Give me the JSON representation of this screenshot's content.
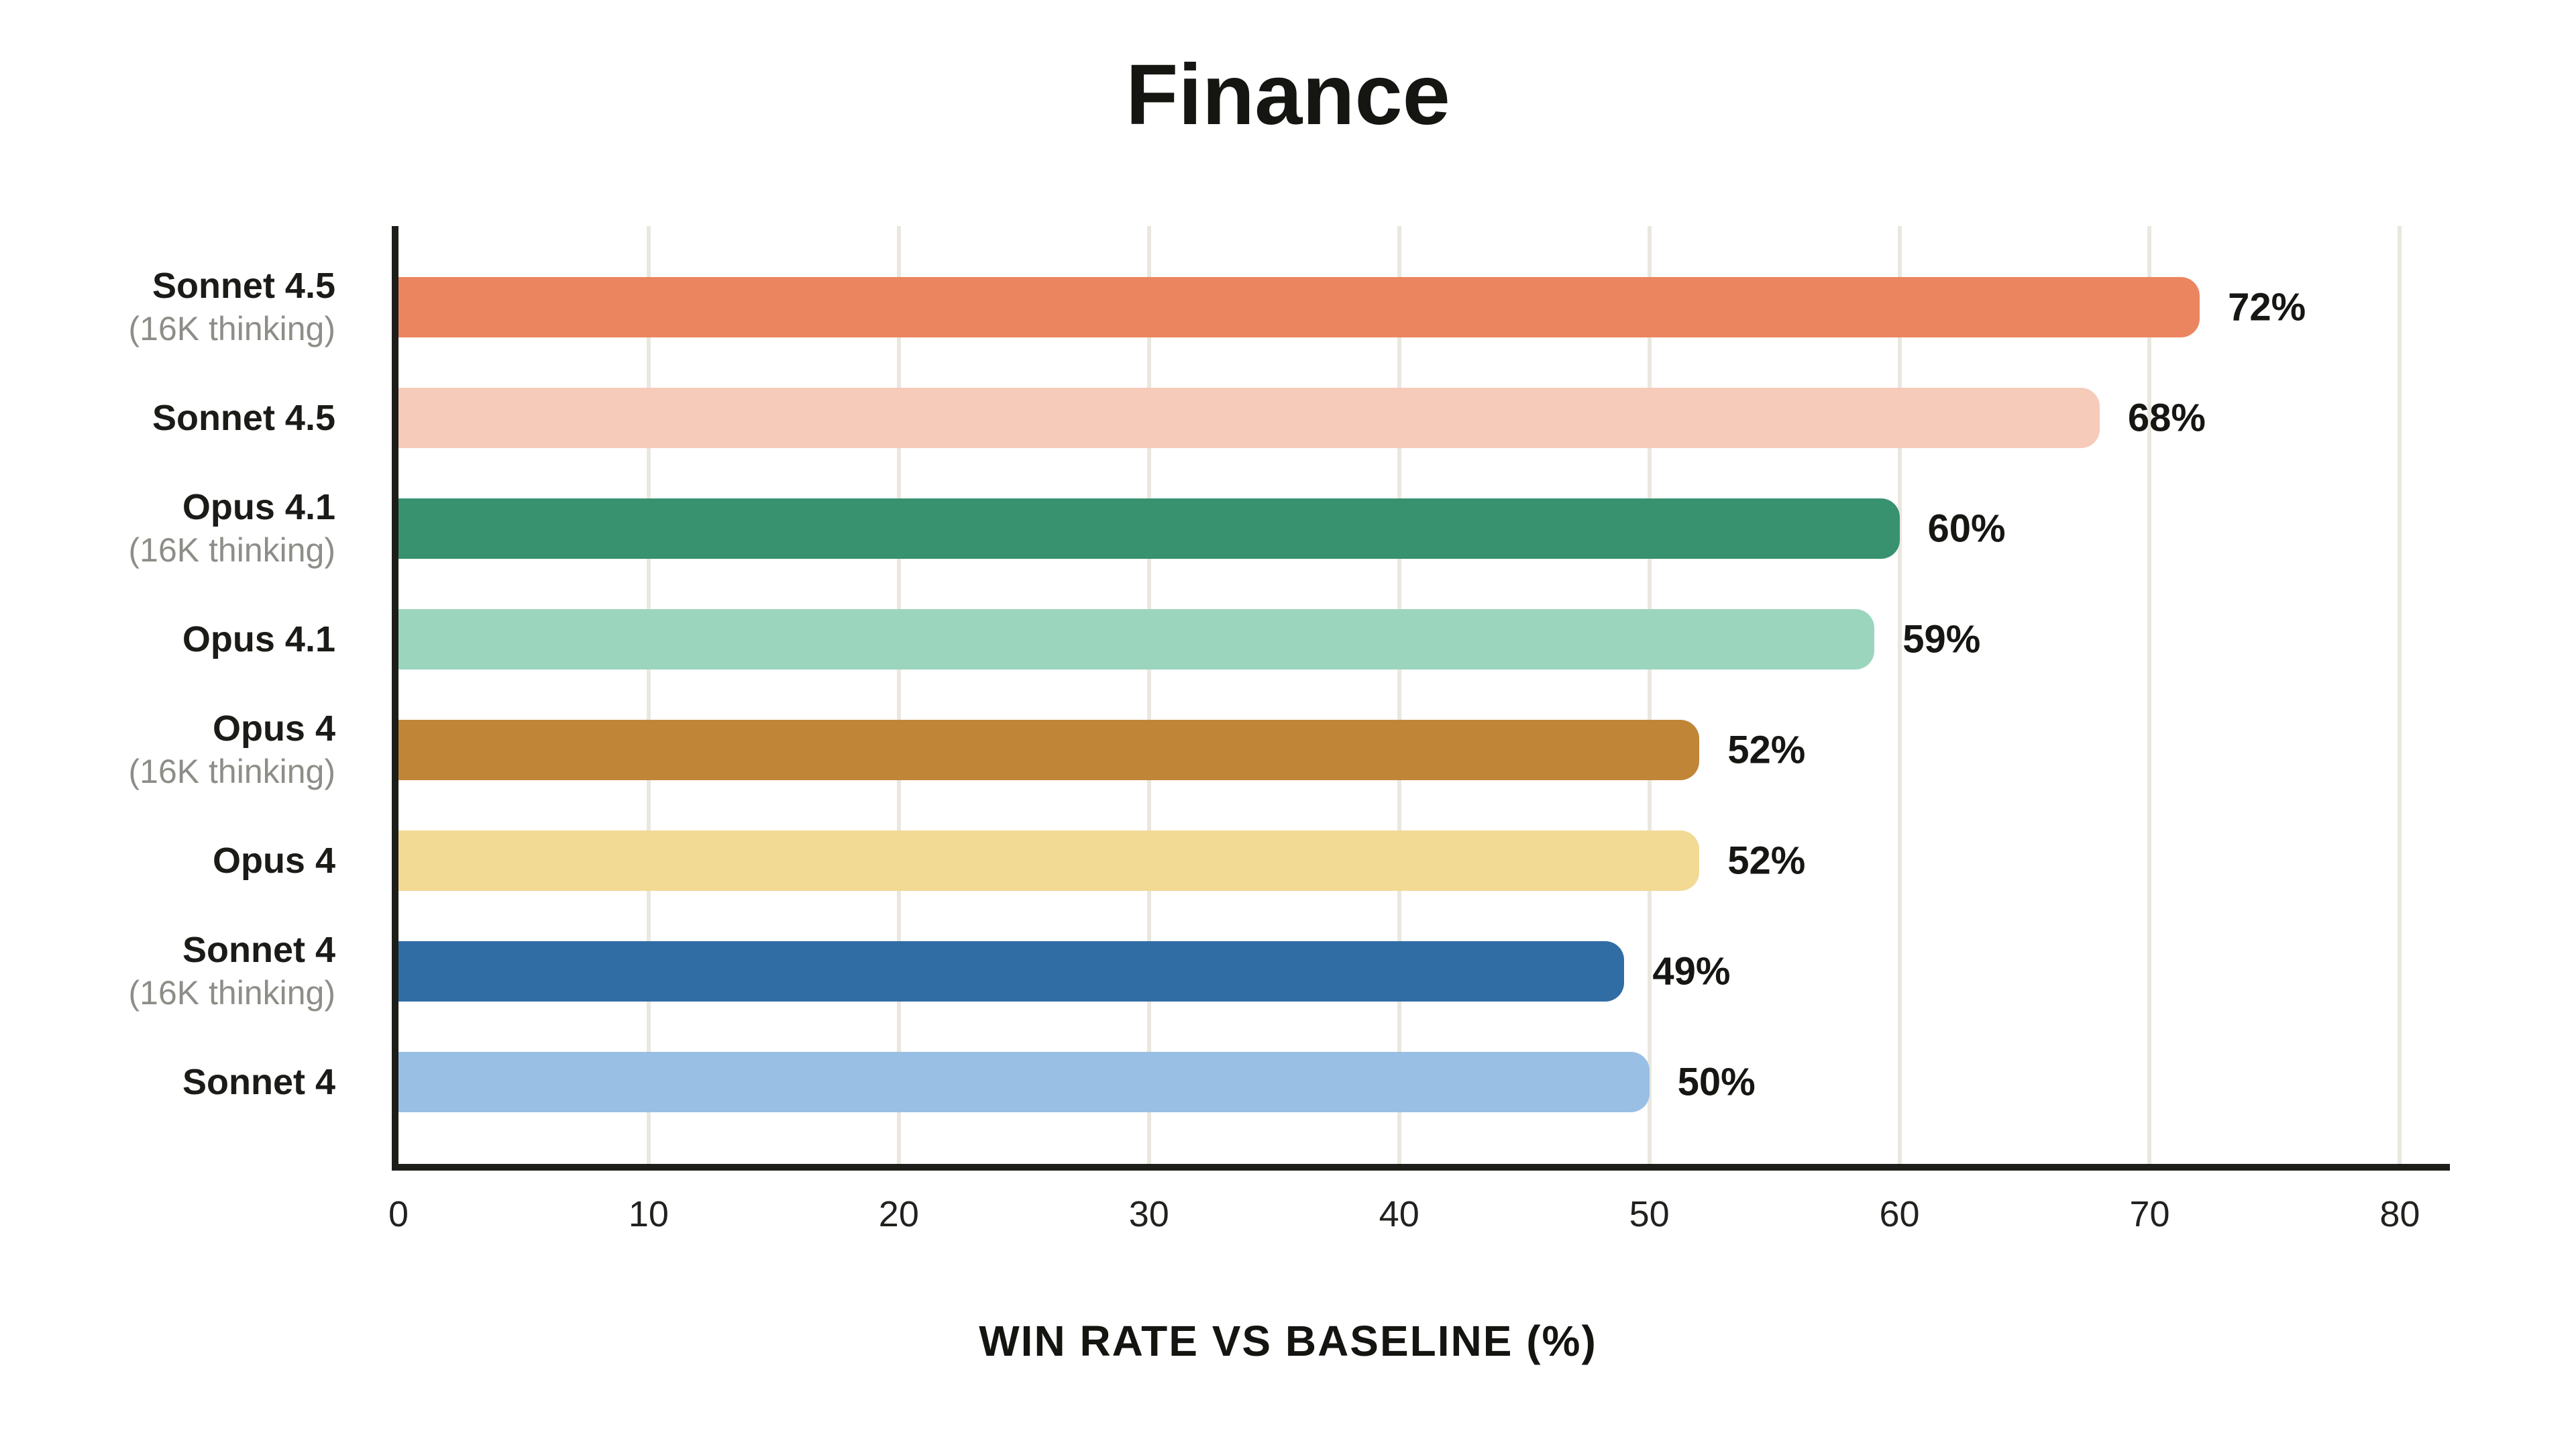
{
  "title": "Finance",
  "x_axis": {
    "label": "WIN RATE VS BASELINE (%)",
    "ticks": [
      0,
      10,
      20,
      30,
      40,
      50,
      60,
      70,
      80
    ],
    "min": 0,
    "max": 80,
    "right_edge_value": 82
  },
  "chart_data": {
    "type": "bar",
    "orientation": "horizontal",
    "title": "Finance",
    "xlabel": "WIN RATE VS BASELINE (%)",
    "ylabel": "",
    "xlim": [
      0,
      80
    ],
    "grid": true,
    "legend": false,
    "categories": [
      "Sonnet 4.5 (16K thinking)",
      "Sonnet 4.5",
      "Opus 4.1 (16K thinking)",
      "Opus 4.1",
      "Opus 4 (16K thinking)",
      "Opus 4",
      "Sonnet 4 (16K thinking)",
      "Sonnet 4"
    ],
    "values": [
      72,
      68,
      60,
      59,
      52,
      52,
      49,
      50
    ],
    "bars": [
      {
        "label": "Sonnet 4.5",
        "sublabel": "(16K thinking)",
        "value": 72,
        "display": "72%",
        "color": "#EB8560"
      },
      {
        "label": "Sonnet 4.5",
        "sublabel": "",
        "value": 68,
        "display": "68%",
        "color": "#F6CBBA"
      },
      {
        "label": "Opus 4.1",
        "sublabel": "(16K thinking)",
        "value": 60,
        "display": "60%",
        "color": "#38916F"
      },
      {
        "label": "Opus 4.1",
        "sublabel": "",
        "value": 59,
        "display": "59%",
        "color": "#9CD5BE"
      },
      {
        "label": "Opus 4",
        "sublabel": "(16K thinking)",
        "value": 52,
        "display": "52%",
        "color": "#C18538"
      },
      {
        "label": "Opus 4",
        "sublabel": "",
        "value": 52,
        "display": "52%",
        "color": "#F2D994"
      },
      {
        "label": "Sonnet 4",
        "sublabel": "(16K thinking)",
        "value": 49,
        "display": "49%",
        "color": "#316DA5"
      },
      {
        "label": "Sonnet 4",
        "sublabel": "",
        "value": 50,
        "display": "50%",
        "color": "#99BFE4"
      }
    ]
  },
  "colors": {
    "background": "#FFFFFF",
    "axis": "#1D1D1A",
    "gridline": "#EAE7DF",
    "text": "#161613",
    "muted_text": "#8E8E88"
  }
}
